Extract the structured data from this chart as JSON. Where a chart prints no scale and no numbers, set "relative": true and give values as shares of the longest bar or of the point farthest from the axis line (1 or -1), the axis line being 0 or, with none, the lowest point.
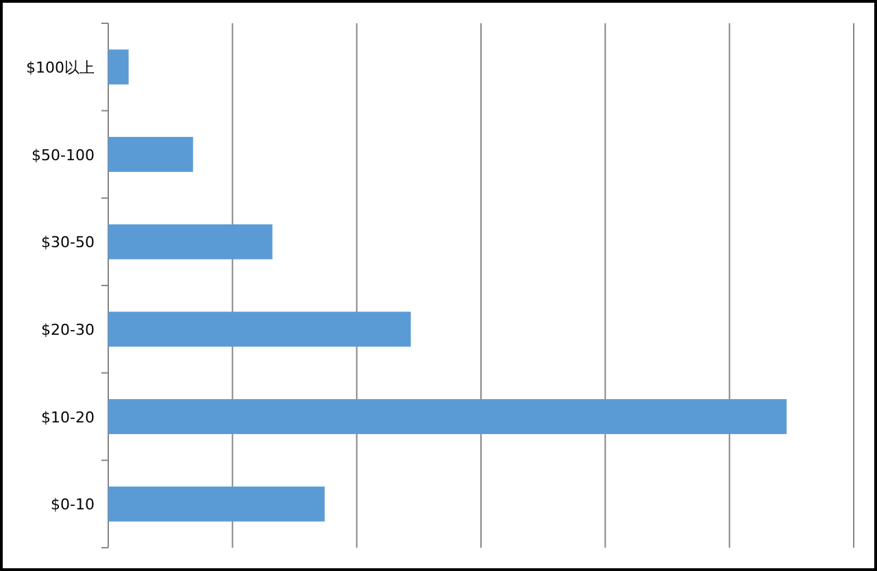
{
  "chart_data": {
    "type": "bar",
    "orientation": "horizontal",
    "relative": true,
    "grid": "x",
    "categories": [
      "$100以上",
      "$50-100",
      "$30-50",
      "$20-30",
      "$10-20",
      "$0-10"
    ],
    "values": [
      0.03,
      0.125,
      0.242,
      0.446,
      1,
      0.319
    ],
    "color": "#5b9bd5"
  }
}
